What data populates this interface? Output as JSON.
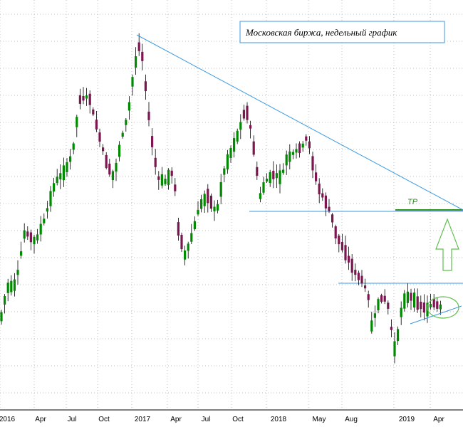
{
  "chart_data": {
    "type": "candlestick",
    "title": "Московская биржа, недельный график",
    "xlabel": "",
    "ylabel": "",
    "x_tick_labels": [
      "2016",
      "Apr",
      "Jul",
      "Oct",
      "2017",
      "Apr",
      "Jul",
      "Oct",
      "2018",
      "May",
      "Aug",
      "2019",
      "Apr"
    ],
    "annotations": {
      "tp_label": "TP"
    },
    "colors": {
      "background": "#ffffff",
      "grid": "#bfbfbf",
      "bull_candle": "#008a00",
      "bear_candle": "#7b1650",
      "wick": "#000000",
      "trendline": "#3b9ae0",
      "tp_line": "#2f8f1f",
      "arrow": "#5fbf4f",
      "title_border": "#3b9ae0"
    },
    "grid": true
  }
}
